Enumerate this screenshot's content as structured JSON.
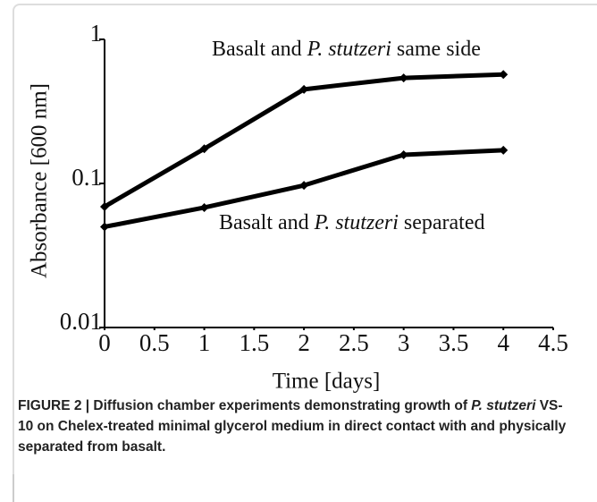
{
  "chart_data": {
    "type": "line",
    "ylabel": "Absorbance [600 nm]",
    "xlabel": "Time [days]",
    "x": [
      0,
      1,
      2,
      3,
      4
    ],
    "series": [
      {
        "label_parts": [
          "Basalt and",
          "P. stutzeri",
          "same side"
        ],
        "color": "#000000",
        "values": [
          0.069,
          0.174,
          0.45,
          0.54,
          0.57
        ]
      },
      {
        "label_parts": [
          "Basalt and",
          "P. stutzeri",
          "separated"
        ],
        "color": "#000000",
        "values": [
          0.05,
          0.068,
          0.097,
          0.158,
          0.17
        ]
      }
    ],
    "xlim": [
      0,
      4.5
    ],
    "xticks": [
      0,
      0.5,
      1,
      1.5,
      2,
      2.5,
      3,
      3.5,
      4,
      4.5
    ],
    "ylim": [
      0.01,
      1
    ],
    "yticks": [
      0.01,
      0.1,
      1
    ],
    "log_y": true,
    "grid": false
  },
  "caption": [
    "FIGURE 2 | Diffusion chamber experiments demonstrating growth of",
    "P. stutzeri",
    "VS-10 on Chelex-treated minimal glycerol medium in direct contact with and physically separated from basalt."
  ]
}
